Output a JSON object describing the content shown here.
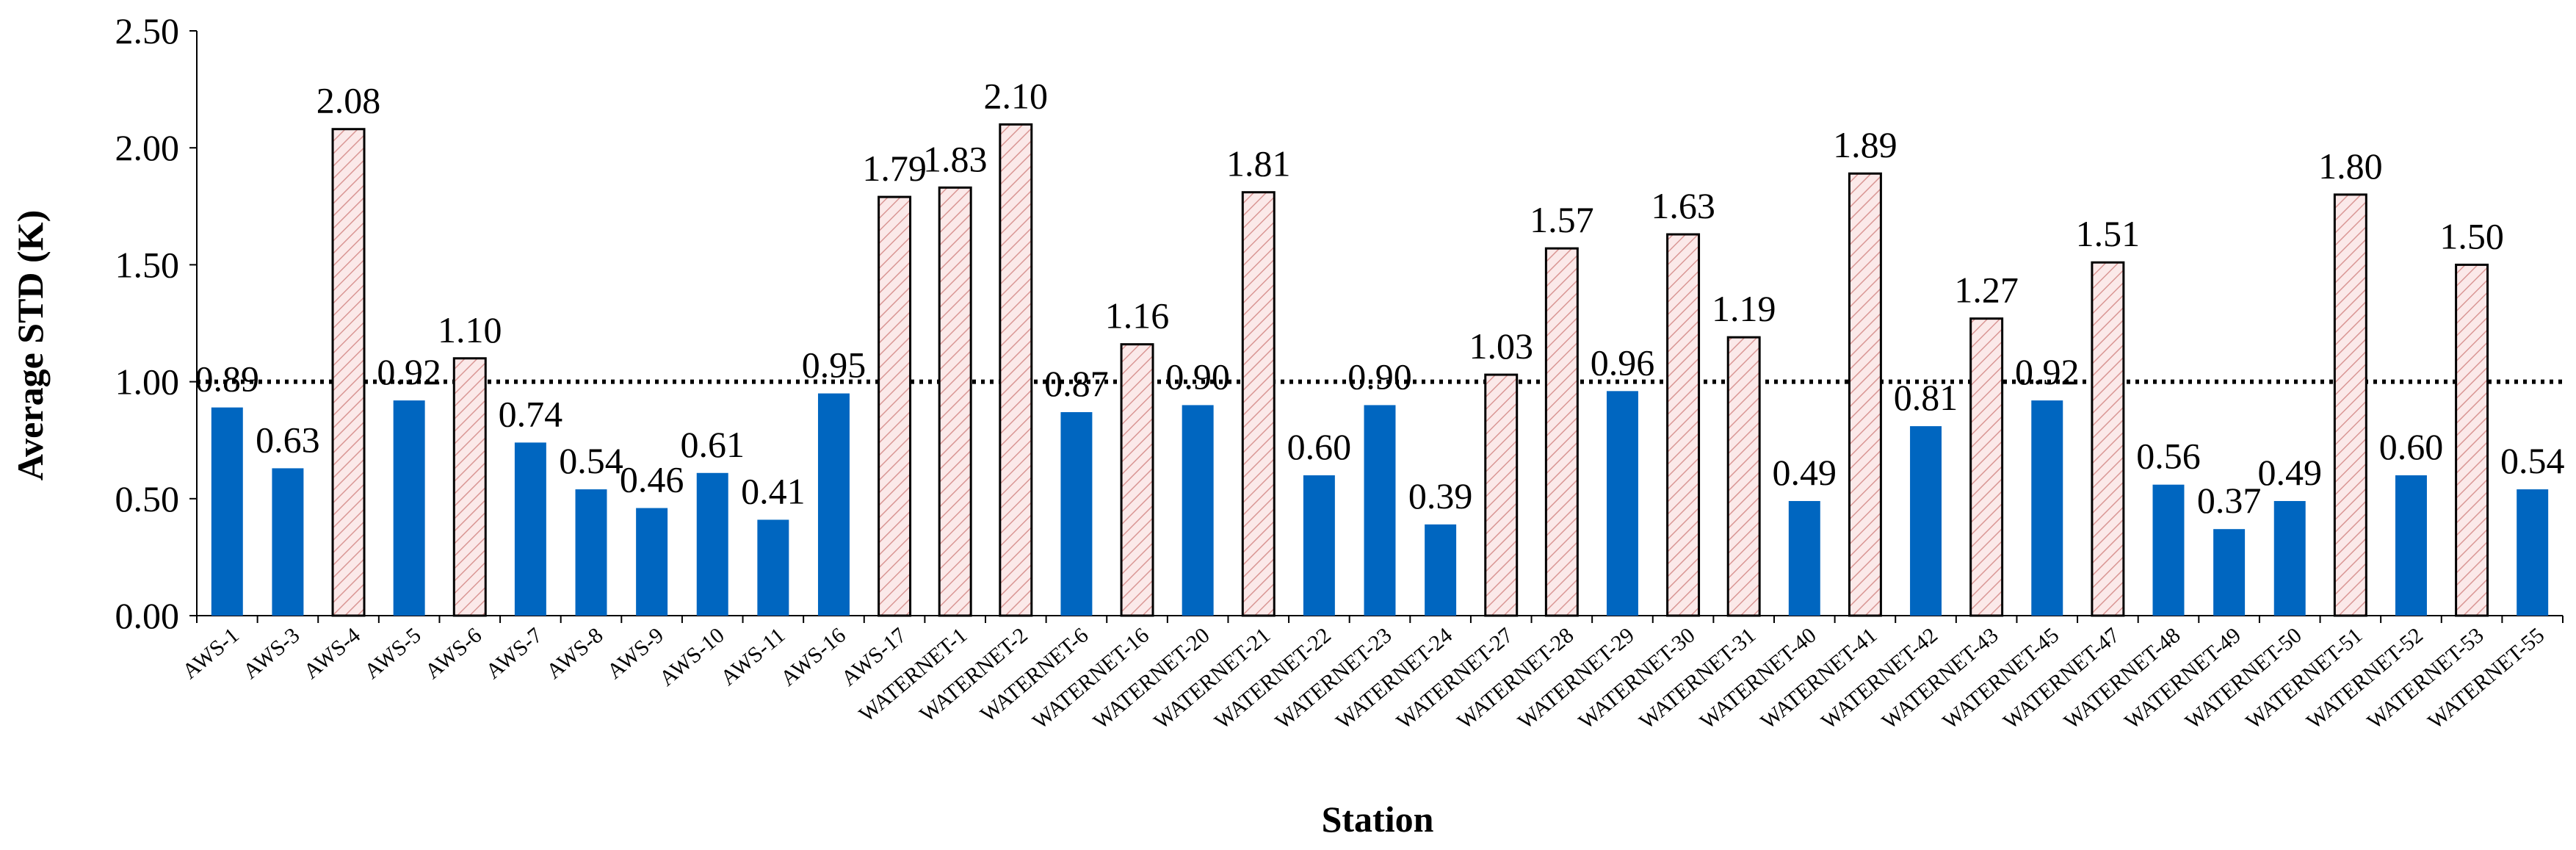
{
  "chart_data": {
    "type": "bar",
    "title": "",
    "xlabel": "Station",
    "ylabel": "Average STD (K)",
    "ylim": [
      0,
      2.5
    ],
    "yticks": [
      "0.00",
      "0.50",
      "1.00",
      "1.50",
      "2.00",
      "2.50"
    ],
    "reference_line": {
      "y": 1.0,
      "style": "dotted"
    },
    "grid": false,
    "legend": "none",
    "colors": {
      "below_reference": "#0066C0",
      "above_reference_fill": "#FBE9E9",
      "above_reference_hatch": "#D99694",
      "outline": "#000000"
    },
    "categories": [
      "AWS-1",
      "AWS-3",
      "AWS-4",
      "AWS-5",
      "AWS-6",
      "AWS-7",
      "AWS-8",
      "AWS-9",
      "AWS-10",
      "AWS-11",
      "AWS-16",
      "AWS-17",
      "WATERNET-1",
      "WATERNET-2",
      "WATERNET-6",
      "WATERNET-16",
      "WATERNET-20",
      "WATERNET-21",
      "WATERNET-22",
      "WATERNET-23",
      "WATERNET-24",
      "WATERNET-27",
      "WATERNET-28",
      "WATERNET-29",
      "WATERNET-30",
      "WATERNET-31",
      "WATERNET-40",
      "WATERNET-41",
      "WATERNET-42",
      "WATERNET-43",
      "WATERNET-45",
      "WATERNET-47",
      "WATERNET-48",
      "WATERNET-49",
      "WATERNET-50",
      "WATERNET-51",
      "WATERNET-52",
      "WATERNET-53",
      "WATERNET-55"
    ],
    "values": [
      0.89,
      0.63,
      2.08,
      0.92,
      1.1,
      0.74,
      0.54,
      0.46,
      0.61,
      0.41,
      0.95,
      1.79,
      1.83,
      2.1,
      0.87,
      1.16,
      0.9,
      1.81,
      0.6,
      0.9,
      0.39,
      1.03,
      1.57,
      0.96,
      1.63,
      1.19,
      0.49,
      1.89,
      0.81,
      1.27,
      0.92,
      1.51,
      0.56,
      0.37,
      0.49,
      1.8,
      0.6,
      1.5,
      0.54
    ],
    "data_labels": [
      "0.89",
      "0.63",
      "2.08",
      "0.92",
      "1.10",
      "0.74",
      "0.54",
      "0.46",
      "0.61",
      "0.41",
      "0.95",
      "1.79",
      "1.83",
      "2.10",
      "0.87",
      "1.16",
      "0.90",
      "1.81",
      "0.60",
      "0.90",
      "0.39",
      "1.03",
      "1.57",
      "0.96",
      "1.63",
      "1.19",
      "0.49",
      "1.89",
      "0.81",
      "1.27",
      "0.92",
      "1.51",
      "0.56",
      "0.37",
      "0.49",
      "1.80",
      "0.60",
      "1.50",
      "0.54"
    ]
  }
}
